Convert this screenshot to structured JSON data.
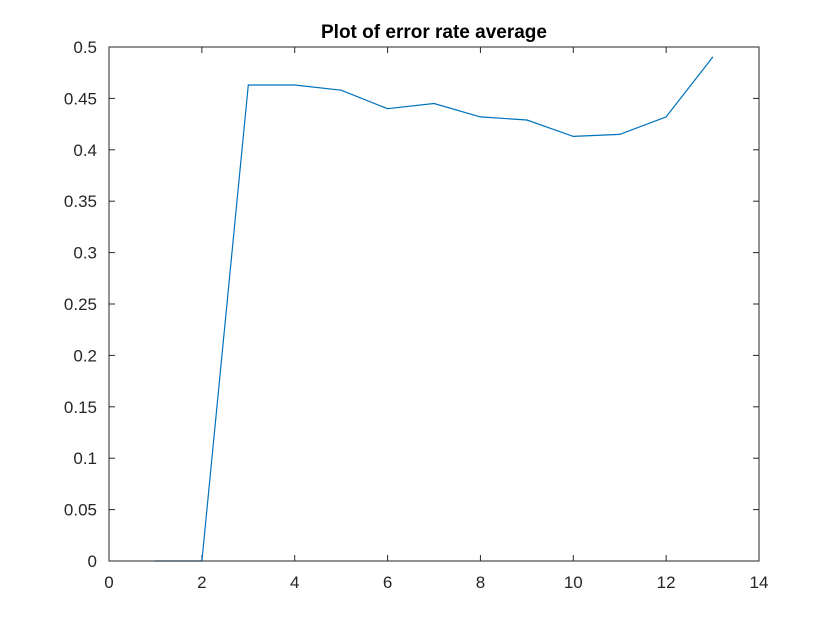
{
  "chart_data": {
    "type": "line",
    "title": "Plot of error rate average",
    "xlabel": "",
    "ylabel": "",
    "xlim": [
      0,
      14
    ],
    "ylim": [
      0,
      0.5
    ],
    "x_ticks": [
      "0",
      "2",
      "4",
      "6",
      "8",
      "10",
      "12",
      "14"
    ],
    "y_ticks": [
      "0",
      "0.05",
      "0.1",
      "0.15",
      "0.2",
      "0.25",
      "0.3",
      "0.35",
      "0.4",
      "0.45",
      "0.5"
    ],
    "x_tick_values": [
      0,
      2,
      4,
      6,
      8,
      10,
      12,
      14
    ],
    "y_tick_values": [
      0,
      0.05,
      0.1,
      0.15,
      0.2,
      0.25,
      0.3,
      0.35,
      0.4,
      0.45,
      0.5
    ],
    "grid": false,
    "series": [
      {
        "x": [
          1,
          2,
          3,
          4,
          5,
          6,
          7,
          8,
          9,
          10,
          11,
          12,
          13
        ],
        "y": [
          0,
          0,
          0.463,
          0.463,
          0.458,
          0.44,
          0.445,
          0.432,
          0.429,
          0.413,
          0.415,
          0.432,
          0.49
        ],
        "color": "#0072BD"
      }
    ]
  }
}
